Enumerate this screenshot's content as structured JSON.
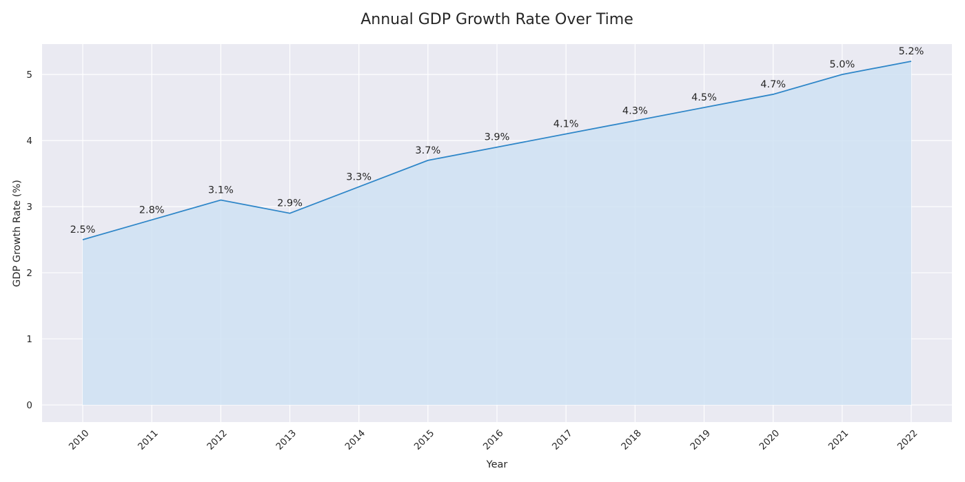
{
  "chart_data": {
    "type": "area",
    "title": "Annual GDP Growth Rate Over Time",
    "xlabel": "Year",
    "ylabel": "GDP Growth Rate (%)",
    "categories": [
      "2010",
      "2011",
      "2012",
      "2013",
      "2014",
      "2015",
      "2016",
      "2017",
      "2018",
      "2019",
      "2020",
      "2021",
      "2022"
    ],
    "values": [
      2.5,
      2.8,
      3.1,
      2.9,
      3.3,
      3.7,
      3.9,
      4.1,
      4.3,
      4.5,
      4.7,
      5.0,
      5.2
    ],
    "data_labels": [
      "2.5%",
      "2.8%",
      "3.1%",
      "2.9%",
      "3.3%",
      "3.7%",
      "3.9%",
      "4.1%",
      "4.3%",
      "4.5%",
      "4.7%",
      "5.0%",
      "5.2%"
    ],
    "yticks": [
      0,
      1,
      2,
      3,
      4,
      5
    ],
    "ylim": [
      -0.26,
      5.46
    ],
    "grid": true,
    "colors": {
      "line": "#2e86c8",
      "fill": "#cfe2f3",
      "plot_bg": "#eaeaf2",
      "grid": "#ffffff"
    }
  }
}
